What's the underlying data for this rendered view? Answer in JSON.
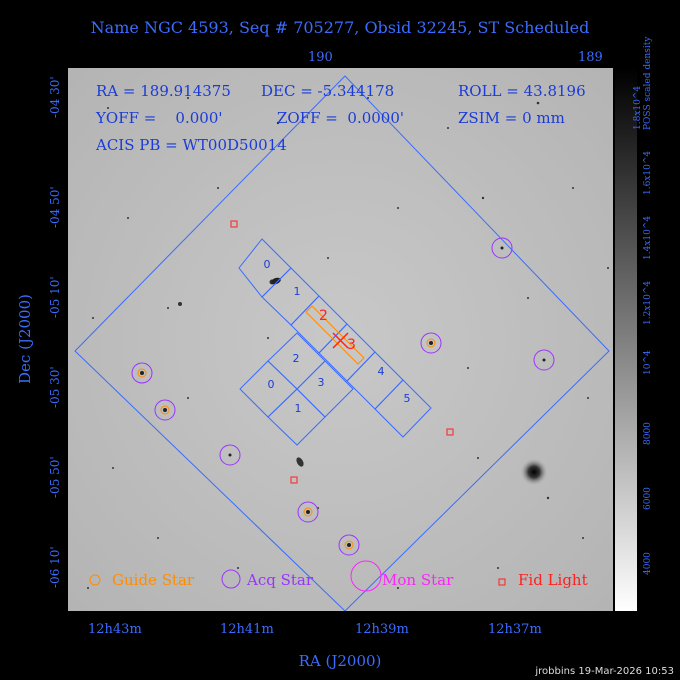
{
  "title": "Name NGC 4593, Seq # 705277, Obsid 32245, ST Scheduled",
  "info": {
    "ra": "RA = 189.914375",
    "dec": "DEC = -5.344178",
    "roll": "ROLL = 43.8196",
    "yoff": "YOFF =    0.000'",
    "zoff": "ZOFF =  0.0000'",
    "zsim": "ZSIM = 0 mm",
    "acis": "ACIS PB = WT00D50014"
  },
  "axes": {
    "x_label": "RA (J2000)",
    "y_label": "Dec (J2000)",
    "x_ticks": [
      "12h43m",
      "12h41m",
      "12h39m",
      "12h37m"
    ],
    "x_top_ticks": [
      "190",
      "189"
    ],
    "y_ticks": [
      "-04 30'",
      "-04 50'",
      "-05 10'",
      "-05 30'",
      "-05 50'",
      "-06 10'"
    ]
  },
  "colorbar": {
    "title": "POSS scaled density",
    "ticks": [
      "4000",
      "6000",
      "8000",
      "10^4",
      "1.2x10^4",
      "1.4x10^4",
      "1.6x10^4",
      "1.8x10^4"
    ]
  },
  "ccd_labels": [
    "0",
    "1",
    "2",
    "3",
    "4",
    "5",
    "0",
    "1",
    "2",
    "3"
  ],
  "si_labels": [
    "2",
    "3"
  ],
  "legend": {
    "guide": "Guide Star",
    "acq": "Acq Star",
    "mon": "Mon Star",
    "fid": "Fid Light"
  },
  "colors": {
    "guide": "#ff8c00",
    "acq": "#9a33ff",
    "mon": "#ff22ff",
    "fid": "#ff2020",
    "frame": "#3a6cff"
  },
  "footer": "jrobbins 19-Mar-2026 10:53"
}
